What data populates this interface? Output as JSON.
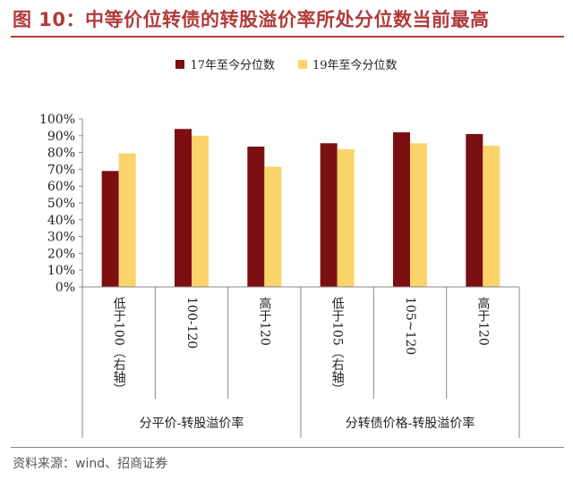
{
  "title": "图 10：中等价位转债的转股溢价率所处分位数当前最高",
  "source": "资料来源：wind、招商证券",
  "colors": {
    "series1": "#7B0F12",
    "series2": "#FAD46A",
    "accent": "#B23A3A"
  },
  "chart_data": {
    "type": "bar",
    "categories": [
      "低于100（右轴）",
      "100-120",
      "高于120",
      "低于105（右轴）",
      "105~120",
      "高于120"
    ],
    "groups": [
      {
        "label": "分平价-转股溢价率",
        "span": 3
      },
      {
        "label": "分转债价格-转股溢价率",
        "span": 3
      }
    ],
    "series": [
      {
        "name": "17年至今分位数",
        "values": [
          0.69,
          0.94,
          0.835,
          0.855,
          0.92,
          0.91
        ]
      },
      {
        "name": "19年至今分位数",
        "values": [
          0.795,
          0.9,
          0.715,
          0.82,
          0.855,
          0.84
        ]
      }
    ],
    "yticks": [
      "0%",
      "10%",
      "20%",
      "30%",
      "40%",
      "50%",
      "60%",
      "70%",
      "80%",
      "90%",
      "100%"
    ],
    "ylim": [
      0,
      1
    ],
    "grid": false,
    "legend_position": "top-center"
  }
}
